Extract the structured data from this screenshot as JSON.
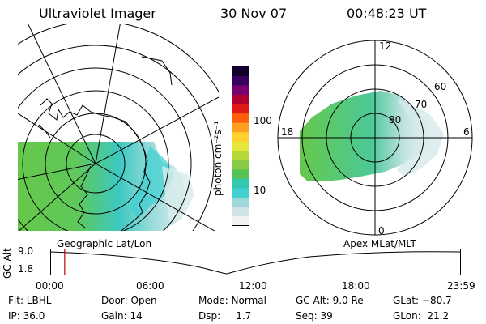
{
  "header": {
    "title": "Ultraviolet Imager",
    "date": "30 Nov 07",
    "time": "00:48:23 UT"
  },
  "colorbar": {
    "unit_label": "photon cm⁻²s⁻¹",
    "ticks": [
      "100",
      "10"
    ],
    "colors": [
      "#f2f2f2",
      "#cfe3e6",
      "#9fd9dc",
      "#44d0d0",
      "#33c8b0",
      "#55c455",
      "#88cc44",
      "#b8d83a",
      "#e6e63a",
      "#ffd030",
      "#ffa020",
      "#ff6010",
      "#e01818",
      "#b00030",
      "#7a0070",
      "#3a0060",
      "#10002a"
    ]
  },
  "left_map": {
    "caption": "Geographic Lat/Lon"
  },
  "right_map": {
    "caption": "Apex MLat/MLT",
    "mlt_labels": {
      "top": "12",
      "bottom": "0",
      "left": "18",
      "right": "6"
    },
    "lat_labels": [
      "60",
      "70",
      "80"
    ]
  },
  "timeline": {
    "y_label": "GC Alt",
    "y_ticks": [
      "9.0",
      "1.8"
    ],
    "x_ticks": [
      "00:00",
      "06:00",
      "12:00",
      "18:00",
      "23:59"
    ],
    "marker_time": "00:48"
  },
  "info": {
    "flt": "Flt: LBHL",
    "ip": "IP: 36.0",
    "door": "Door: Open",
    "gain": "Gain: 14",
    "mode": "Mode: Normal",
    "dsp": "Dsp:     1.7",
    "gc_alt": "GC Alt: 9.0 Re",
    "seq": "Seq: 39",
    "glat": "GLat: −80.7",
    "glon": "GLon:  21.2"
  }
}
